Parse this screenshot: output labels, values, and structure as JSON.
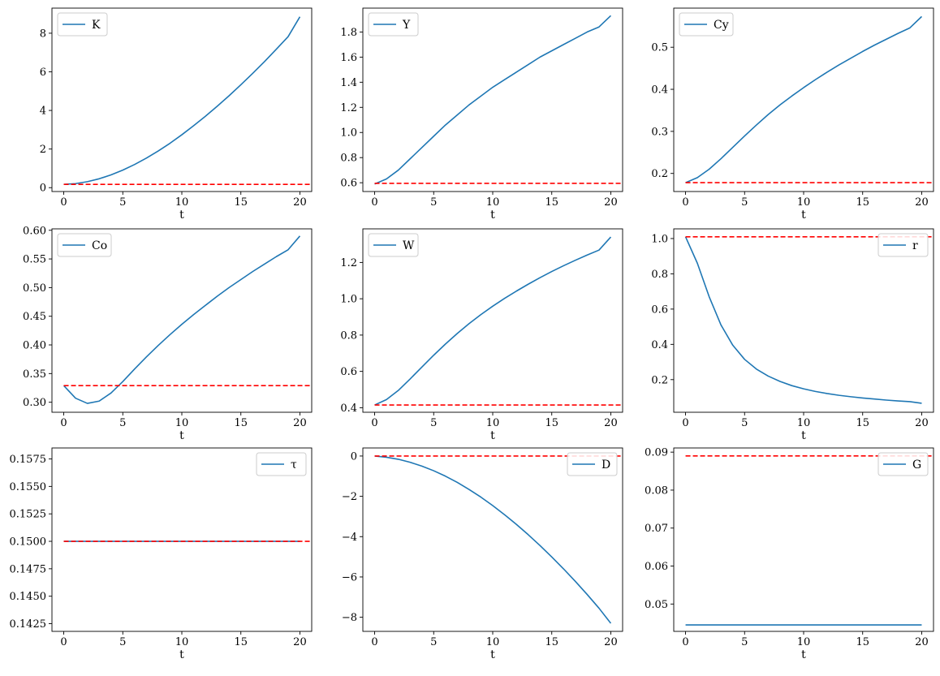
{
  "chart_data": [
    {
      "type": "line",
      "xlabel": "t",
      "xlim": [
        -1,
        21
      ],
      "ylim": [
        -0.2,
        9.3
      ],
      "yticks": [
        0,
        2,
        4,
        6,
        8
      ],
      "ytick_labels": [
        "0",
        "2",
        "4",
        "6",
        "8"
      ],
      "xticks": [
        0,
        5,
        10,
        15,
        20
      ],
      "xtick_labels": [
        "0",
        "5",
        "10",
        "15",
        "20"
      ],
      "legend_loc": "upper left",
      "series": [
        {
          "name": "K",
          "color": "#1f77b4",
          "style": "solid",
          "x": [
            0,
            1,
            2,
            3,
            4,
            5,
            6,
            7,
            8,
            9,
            10,
            11,
            12,
            13,
            14,
            15,
            16,
            17,
            18,
            19,
            20
          ],
          "y": [
            0.17,
            0.21,
            0.31,
            0.46,
            0.66,
            0.91,
            1.2,
            1.53,
            1.9,
            2.3,
            2.74,
            3.21,
            3.7,
            4.22,
            4.76,
            5.33,
            5.92,
            6.53,
            7.17,
            7.82,
            8.85
          ]
        },
        {
          "name": "",
          "color": "#ff0000",
          "style": "dashed",
          "x": [
            0,
            21
          ],
          "y": [
            0.17,
            0.17
          ]
        }
      ]
    },
    {
      "type": "line",
      "xlabel": "t",
      "xlim": [
        -1,
        21
      ],
      "ylim": [
        0.53,
        1.99
      ],
      "yticks": [
        0.6,
        0.8,
        1.0,
        1.2,
        1.4,
        1.6,
        1.8
      ],
      "ytick_labels": [
        "0.6",
        "0.8",
        "1.0",
        "1.2",
        "1.4",
        "1.6",
        "1.8"
      ],
      "xticks": [
        0,
        5,
        10,
        15,
        20
      ],
      "xtick_labels": [
        "0",
        "5",
        "10",
        "15",
        "20"
      ],
      "legend_loc": "upper left",
      "series": [
        {
          "name": "Y",
          "color": "#1f77b4",
          "style": "solid",
          "x": [
            0,
            1,
            2,
            3,
            4,
            5,
            6,
            7,
            8,
            9,
            10,
            11,
            12,
            13,
            14,
            15,
            16,
            17,
            18,
            19,
            20
          ],
          "y": [
            0.59,
            0.63,
            0.7,
            0.79,
            0.88,
            0.97,
            1.06,
            1.14,
            1.22,
            1.29,
            1.36,
            1.42,
            1.48,
            1.54,
            1.6,
            1.65,
            1.7,
            1.75,
            1.8,
            1.84,
            1.93
          ]
        },
        {
          "name": "",
          "color": "#ff0000",
          "style": "dashed",
          "x": [
            0,
            21
          ],
          "y": [
            0.595,
            0.595
          ]
        }
      ]
    },
    {
      "type": "line",
      "xlabel": "t",
      "xlim": [
        -1,
        21
      ],
      "ylim": [
        0.157,
        0.593
      ],
      "yticks": [
        0.2,
        0.3,
        0.4,
        0.5
      ],
      "ytick_labels": [
        "0.2",
        "0.3",
        "0.4",
        "0.5"
      ],
      "xticks": [
        0,
        5,
        10,
        15,
        20
      ],
      "xtick_labels": [
        "0",
        "5",
        "10",
        "15",
        "20"
      ],
      "legend_loc": "upper left",
      "series": [
        {
          "name": "Cy",
          "color": "#1f77b4",
          "style": "solid",
          "x": [
            0,
            1,
            2,
            3,
            4,
            5,
            6,
            7,
            8,
            9,
            10,
            11,
            12,
            13,
            14,
            15,
            16,
            17,
            18,
            19,
            20
          ],
          "y": [
            0.178,
            0.19,
            0.21,
            0.235,
            0.262,
            0.289,
            0.315,
            0.34,
            0.363,
            0.384,
            0.404,
            0.423,
            0.441,
            0.458,
            0.474,
            0.49,
            0.505,
            0.519,
            0.533,
            0.546,
            0.573
          ]
        },
        {
          "name": "",
          "color": "#ff0000",
          "style": "dashed",
          "x": [
            0,
            21
          ],
          "y": [
            0.178,
            0.178
          ]
        }
      ]
    },
    {
      "type": "line",
      "xlabel": "t",
      "xlim": [
        -1,
        21
      ],
      "ylim": [
        0.2825,
        0.6025
      ],
      "yticks": [
        0.3,
        0.35,
        0.4,
        0.45,
        0.5,
        0.55,
        0.6
      ],
      "ytick_labels": [
        "0.30",
        "0.35",
        "0.40",
        "0.45",
        "0.50",
        "0.55",
        "0.60"
      ],
      "xticks": [
        0,
        5,
        10,
        15,
        20
      ],
      "xtick_labels": [
        "0",
        "5",
        "10",
        "15",
        "20"
      ],
      "legend_loc": "upper left",
      "series": [
        {
          "name": "Co",
          "color": "#1f77b4",
          "style": "solid",
          "x": [
            0,
            1,
            2,
            3,
            4,
            5,
            6,
            7,
            8,
            9,
            10,
            11,
            12,
            13,
            14,
            15,
            16,
            17,
            18,
            19,
            20
          ],
          "y": [
            0.329,
            0.307,
            0.298,
            0.302,
            0.316,
            0.336,
            0.358,
            0.379,
            0.399,
            0.418,
            0.436,
            0.453,
            0.469,
            0.485,
            0.5,
            0.514,
            0.528,
            0.541,
            0.554,
            0.566,
            0.59
          ]
        },
        {
          "name": "",
          "color": "#ff0000",
          "style": "dashed",
          "x": [
            0,
            21
          ],
          "y": [
            0.329,
            0.329
          ]
        }
      ]
    },
    {
      "type": "line",
      "xlabel": "t",
      "xlim": [
        -1,
        21
      ],
      "ylim": [
        0.375,
        1.385
      ],
      "yticks": [
        0.4,
        0.6,
        0.8,
        1.0,
        1.2
      ],
      "ytick_labels": [
        "0.4",
        "0.6",
        "0.8",
        "1.0",
        "1.2"
      ],
      "xticks": [
        0,
        5,
        10,
        15,
        20
      ],
      "xtick_labels": [
        "0",
        "5",
        "10",
        "15",
        "20"
      ],
      "legend_loc": "upper left",
      "series": [
        {
          "name": "W",
          "color": "#1f77b4",
          "style": "solid",
          "x": [
            0,
            1,
            2,
            3,
            4,
            5,
            6,
            7,
            8,
            9,
            10,
            11,
            12,
            13,
            14,
            15,
            16,
            17,
            18,
            19,
            20
          ],
          "y": [
            0.415,
            0.445,
            0.495,
            0.558,
            0.624,
            0.689,
            0.751,
            0.809,
            0.863,
            0.913,
            0.959,
            1.002,
            1.042,
            1.08,
            1.116,
            1.15,
            1.182,
            1.212,
            1.241,
            1.268,
            1.34
          ]
        },
        {
          "name": "",
          "color": "#ff0000",
          "style": "dashed",
          "x": [
            0,
            21
          ],
          "y": [
            0.415,
            0.415
          ]
        }
      ]
    },
    {
      "type": "line",
      "xlabel": "t",
      "xlim": [
        -1,
        21
      ],
      "ylim": [
        0.015,
        1.055
      ],
      "yticks": [
        0.2,
        0.4,
        0.6,
        0.8,
        1.0
      ],
      "ytick_labels": [
        "0.2",
        "0.4",
        "0.6",
        "0.8",
        "1.0"
      ],
      "xticks": [
        0,
        5,
        10,
        15,
        20
      ],
      "xtick_labels": [
        "0",
        "5",
        "10",
        "15",
        "20"
      ],
      "legend_loc": "upper right",
      "series": [
        {
          "name": "r",
          "color": "#1f77b4",
          "style": "solid",
          "x": [
            0,
            1,
            2,
            3,
            4,
            5,
            6,
            7,
            8,
            9,
            10,
            11,
            12,
            13,
            14,
            15,
            16,
            17,
            18,
            19,
            20
          ],
          "y": [
            1.01,
            0.86,
            0.67,
            0.51,
            0.395,
            0.315,
            0.26,
            0.22,
            0.19,
            0.166,
            0.148,
            0.133,
            0.121,
            0.111,
            0.103,
            0.096,
            0.09,
            0.084,
            0.079,
            0.075,
            0.066
          ]
        },
        {
          "name": "",
          "color": "#ff0000",
          "style": "dashed",
          "x": [
            0,
            21
          ],
          "y": [
            1.01,
            1.01
          ]
        }
      ]
    },
    {
      "type": "line",
      "xlabel": "t",
      "xlim": [
        -1,
        21
      ],
      "ylim": [
        0.1418,
        0.1585
      ],
      "yticks": [
        0.1425,
        0.145,
        0.1475,
        0.15,
        0.1525,
        0.155,
        0.1575
      ],
      "ytick_labels": [
        "0.1425",
        "0.1450",
        "0.1475",
        "0.1500",
        "0.1525",
        "0.1550",
        "0.1575"
      ],
      "xticks": [
        0,
        5,
        10,
        15,
        20
      ],
      "xtick_labels": [
        "0",
        "5",
        "10",
        "15",
        "20"
      ],
      "legend_loc": "upper right",
      "series": [
        {
          "name": "τ",
          "color": "#1f77b4",
          "style": "solid",
          "x": [
            0,
            20
          ],
          "y": [
            0.15,
            0.15
          ]
        },
        {
          "name": "",
          "color": "#ff0000",
          "style": "dashed",
          "x": [
            0,
            21
          ],
          "y": [
            0.15,
            0.15
          ]
        }
      ]
    },
    {
      "type": "line",
      "xlabel": "t",
      "xlim": [
        -1,
        21
      ],
      "ylim": [
        -8.7,
        0.4
      ],
      "yticks": [
        -8,
        -6,
        -4,
        -2,
        0
      ],
      "ytick_labels": [
        "−8",
        "−6",
        "−4",
        "−2",
        "0"
      ],
      "xticks": [
        0,
        5,
        10,
        15,
        20
      ],
      "xtick_labels": [
        "0",
        "5",
        "10",
        "15",
        "20"
      ],
      "legend_loc": "upper right",
      "series": [
        {
          "name": "D",
          "color": "#1f77b4",
          "style": "solid",
          "x": [
            0,
            1,
            2,
            3,
            4,
            5,
            6,
            7,
            8,
            9,
            10,
            11,
            12,
            13,
            14,
            15,
            16,
            17,
            18,
            19,
            20
          ],
          "y": [
            0,
            -0.06,
            -0.16,
            -0.31,
            -0.5,
            -0.73,
            -1.0,
            -1.31,
            -1.66,
            -2.04,
            -2.46,
            -2.91,
            -3.39,
            -3.9,
            -4.44,
            -5.01,
            -5.6,
            -6.22,
            -6.87,
            -7.55,
            -8.3
          ]
        },
        {
          "name": "",
          "color": "#ff0000",
          "style": "dashed",
          "x": [
            0,
            21
          ],
          "y": [
            0,
            0
          ]
        }
      ]
    },
    {
      "type": "line",
      "xlabel": "t",
      "xlim": [
        -1,
        21
      ],
      "ylim": [
        0.0428,
        0.0911
      ],
      "yticks": [
        0.05,
        0.06,
        0.07,
        0.08,
        0.09
      ],
      "ytick_labels": [
        "0.05",
        "0.06",
        "0.07",
        "0.08",
        "0.09"
      ],
      "xticks": [
        0,
        5,
        10,
        15,
        20
      ],
      "xtick_labels": [
        "0",
        "5",
        "10",
        "15",
        "20"
      ],
      "legend_loc": "upper right",
      "series": [
        {
          "name": "G",
          "color": "#1f77b4",
          "style": "solid",
          "x": [
            0,
            20
          ],
          "y": [
            0.0445,
            0.0445
          ]
        },
        {
          "name": "",
          "color": "#ff0000",
          "style": "dashed",
          "x": [
            0,
            21
          ],
          "y": [
            0.089,
            0.089
          ]
        }
      ]
    }
  ]
}
